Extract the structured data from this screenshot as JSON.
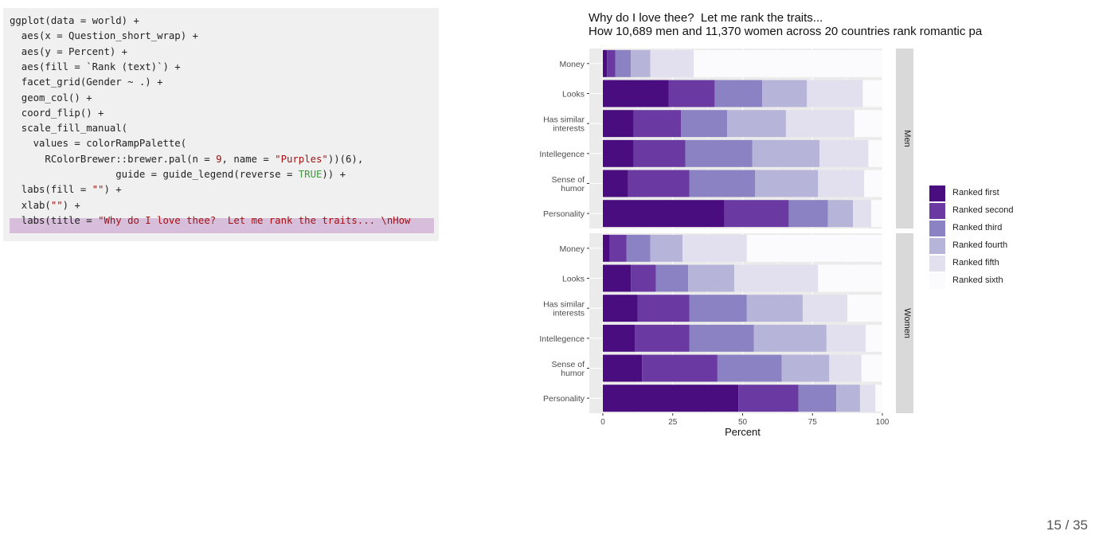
{
  "code": {
    "lines": [
      [
        {
          "t": "ggplot(data = world) +"
        }
      ],
      [
        {
          "t": "  aes(x = Question_short_wrap) +"
        }
      ],
      [
        {
          "t": "  aes(y = Percent) +"
        }
      ],
      [
        {
          "t": "  aes(fill = `Rank (text)`) +"
        }
      ],
      [
        {
          "t": "  facet_grid(Gender ~ .) +"
        }
      ],
      [
        {
          "t": "  geom_col() +"
        }
      ],
      [
        {
          "t": "  coord_flip() +"
        }
      ],
      [
        {
          "t": "  scale_fill_manual("
        }
      ],
      [
        {
          "t": "    values = colorRampPalette("
        }
      ],
      [
        {
          "t": "      RColorBrewer::brewer.pal(n = "
        },
        {
          "t": "9",
          "c": "num"
        },
        {
          "t": ", name = "
        },
        {
          "t": "\"Purples\"",
          "c": "str"
        },
        {
          "t": "))(6),"
        }
      ],
      [
        {
          "t": "                  guide = guide_legend(reverse = "
        },
        {
          "t": "TRUE",
          "c": "bool"
        },
        {
          "t": ")) +"
        }
      ],
      [
        {
          "t": "  labs(fill = "
        },
        {
          "t": "\"\"",
          "c": "str"
        },
        {
          "t": ") +"
        }
      ],
      [
        {
          "t": "  xlab("
        },
        {
          "t": "\"\"",
          "c": "str"
        },
        {
          "t": ") +"
        }
      ],
      [
        {
          "t": "  labs(title = "
        },
        {
          "t": "\"Why do I love thee?  Let me rank the traits... \\nHow",
          "c": "str"
        }
      ]
    ]
  },
  "page_number": "15 / 35",
  "colors": {
    "ranks": [
      "#4a0d80",
      "#6a3aa2",
      "#8a82c2",
      "#b7b4d9",
      "#e2e0ef",
      "#fbfbfd"
    ],
    "panel_bg": "#ebebeb",
    "strip_bg": "#d9d9d9",
    "grid": "#ffffff"
  },
  "chart_data": {
    "type": "bar",
    "orientation": "horizontal",
    "stacked": true,
    "title": "Why do I love thee?  Let me rank the traits...",
    "subtitle": "How 10,689 men and 11,370 women across 20 countries rank romantic pa",
    "xlabel": "",
    "ylabel": "Percent",
    "ylim": [
      0,
      100
    ],
    "ticks": [
      0,
      25,
      50,
      75,
      100
    ],
    "grid": true,
    "legend_position": "right",
    "categories": [
      "Money",
      "Looks",
      "Has similar\ninterests",
      "Intellegence",
      "Sense of\nhumor",
      "Personality"
    ],
    "series_names": [
      "Ranked first",
      "Ranked second",
      "Ranked third",
      "Ranked fourth",
      "Ranked fifth",
      "Ranked sixth"
    ],
    "facets": [
      {
        "label": "Men",
        "values": [
          [
            1.5,
            3,
            5.5,
            7,
            15.5,
            67.5
          ],
          [
            23.5,
            16.5,
            17,
            16,
            20,
            7
          ],
          [
            11,
            17,
            16.5,
            21,
            24.5,
            10
          ],
          [
            11,
            18.5,
            24,
            24,
            17.5,
            5
          ],
          [
            9,
            22,
            23.5,
            22.5,
            16.5,
            6.5
          ],
          [
            43.5,
            23,
            14,
            9,
            6.5,
            4
          ]
        ]
      },
      {
        "label": "Women",
        "values": [
          [
            2.5,
            6,
            8.5,
            11.5,
            23,
            48.5
          ],
          [
            10,
            9,
            11.5,
            16.5,
            30,
            23
          ],
          [
            12.5,
            18.5,
            20.5,
            20,
            16,
            12.5
          ],
          [
            11.5,
            19.5,
            23,
            26,
            14,
            6
          ],
          [
            14,
            27,
            23,
            17,
            11.5,
            7.5
          ],
          [
            48.5,
            21.5,
            13.5,
            8.5,
            5.5,
            2.5
          ]
        ]
      }
    ]
  }
}
